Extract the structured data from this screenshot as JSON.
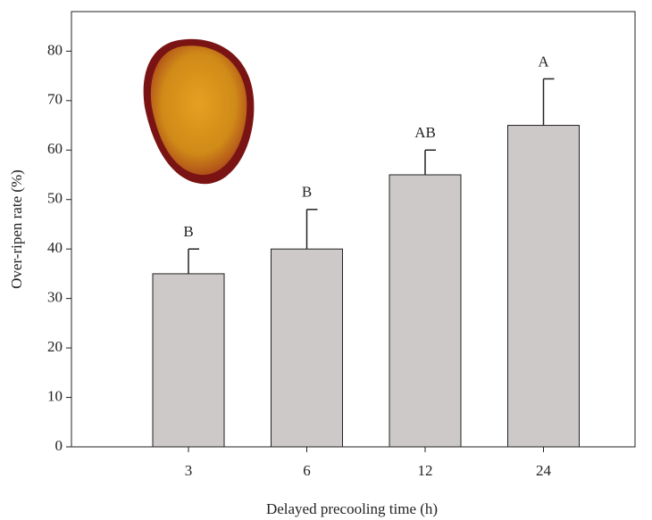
{
  "chart_data": {
    "type": "bar",
    "x_label": "Delayed precooling time (h)",
    "y_label": "Over-ripen rate (%)",
    "categories": [
      "3",
      "6",
      "12",
      "24"
    ],
    "values": [
      35,
      40,
      55,
      65
    ],
    "errors": [
      5,
      8,
      5,
      9.4
    ],
    "letters": [
      "B",
      "B",
      "AB",
      "A"
    ],
    "color": "#cdc9c9",
    "ylim": [
      0,
      88
    ],
    "yticks": [
      0,
      10,
      20,
      30,
      40,
      50,
      60,
      70,
      80
    ]
  }
}
